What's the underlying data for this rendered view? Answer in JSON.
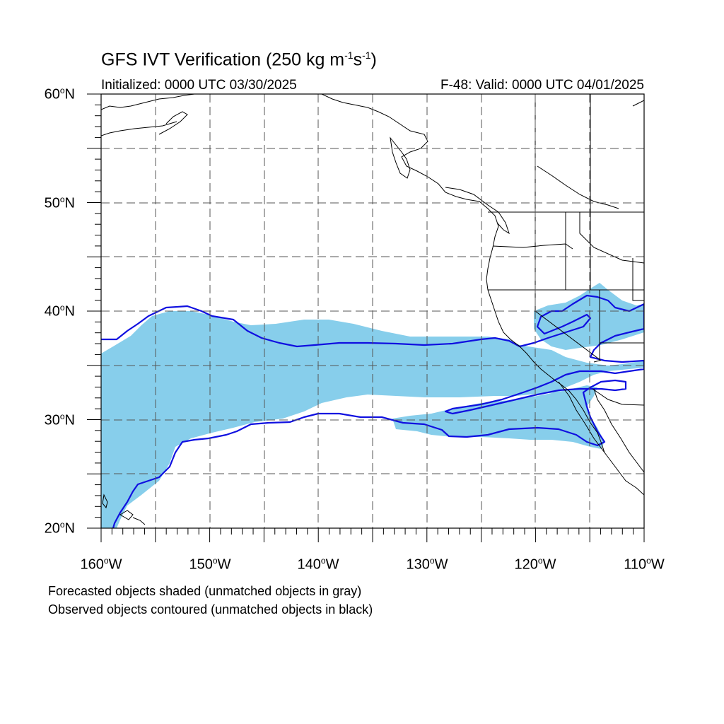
{
  "title": {
    "main": "GFS IVT Verification (250 kg m",
    "unit_exp1": "-1",
    "unit_mid": "s",
    "unit_exp2": "-1",
    "unit_end": ")"
  },
  "initialized": "Initialized: 0000 UTC 03/30/2025",
  "valid": "F-48: Valid: 0000 UTC 04/01/2025",
  "axes": {
    "lat_labels": [
      {
        "num": "60",
        "hemi": "N"
      },
      {
        "num": "50",
        "hemi": "N"
      },
      {
        "num": "40",
        "hemi": "N"
      },
      {
        "num": "30",
        "hemi": "N"
      },
      {
        "num": "20",
        "hemi": "N"
      }
    ],
    "lon_labels": [
      {
        "num": "160",
        "hemi": "W"
      },
      {
        "num": "150",
        "hemi": "W"
      },
      {
        "num": "140",
        "hemi": "W"
      },
      {
        "num": "130",
        "hemi": "W"
      },
      {
        "num": "120",
        "hemi": "W"
      },
      {
        "num": "110",
        "hemi": "W"
      }
    ]
  },
  "legend": {
    "line1": "Forecasted objects shaded (unmatched objects in gray)",
    "line2": "Observed objects contoured (unmatched objects in black)"
  },
  "colors": {
    "forecast_fill": "#87ceeb",
    "observed_contour": "#1010e0",
    "coastline": "#000000",
    "grid": "#555555"
  }
}
